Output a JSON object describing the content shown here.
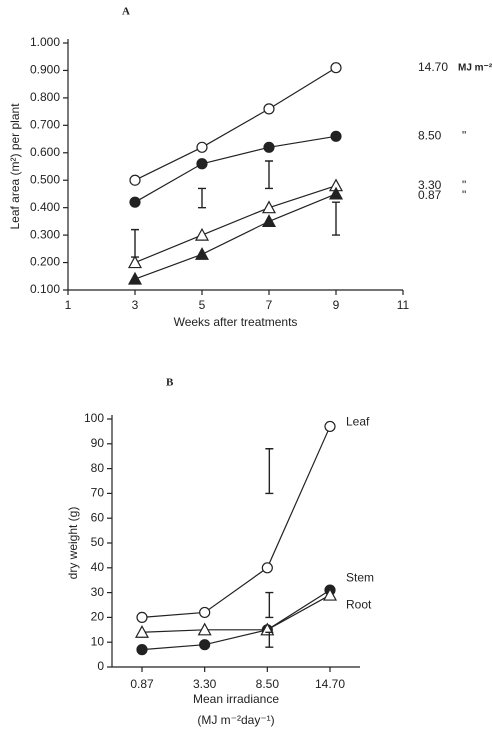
{
  "chart_data": [
    {
      "type": "line",
      "title": "A",
      "xlabel": "Weeks after treatments",
      "ylabel": "Leaf area (m²) per plant",
      "x": [
        3,
        5,
        7,
        9
      ],
      "xlim": [
        1,
        11
      ],
      "xticks": [
        1,
        3,
        5,
        7,
        9,
        11
      ],
      "ylim": [
        0.1,
        1.0
      ],
      "yticks": [
        {
          "value": 0.1,
          "label": "0.100"
        },
        {
          "value": 0.2,
          "label": "0.200"
        },
        {
          "value": 0.3,
          "label": "0.300"
        },
        {
          "value": 0.4,
          "label": "0.400"
        },
        {
          "value": 0.5,
          "label": "0.500"
        },
        {
          "value": 0.6,
          "label": "0.600"
        },
        {
          "value": 0.7,
          "label": "0.700"
        },
        {
          "value": 0.8,
          "label": "0.800"
        },
        {
          "value": 0.9,
          "label": "0.900"
        },
        {
          "value": 1.0,
          "label": "1.000"
        }
      ],
      "unit_label": "MJ m⁻²day⁻¹",
      "ditto": "\"",
      "series": [
        {
          "name": "14.70",
          "marker": "circle-open",
          "values": [
            0.5,
            0.62,
            0.76,
            0.91
          ]
        },
        {
          "name": "8.50",
          "marker": "circle-filled",
          "values": [
            0.42,
            0.56,
            0.62,
            0.66
          ]
        },
        {
          "name": "3.30",
          "marker": "triangle-open",
          "values": [
            0.2,
            0.3,
            0.4,
            0.48
          ]
        },
        {
          "name": "0.87",
          "marker": "triangle-filled",
          "values": [
            0.14,
            0.23,
            0.35,
            0.45
          ]
        }
      ],
      "error_bars": [
        {
          "x": 3,
          "low": 0.22,
          "high": 0.32
        },
        {
          "x": 5,
          "low": 0.4,
          "high": 0.47
        },
        {
          "x": 7,
          "low": 0.47,
          "high": 0.57
        },
        {
          "x": 9,
          "low": 0.3,
          "high": 0.42
        }
      ]
    },
    {
      "type": "line",
      "title": "B",
      "xlabel": "Mean irradiance",
      "unit_label": "(MJ m⁻²day⁻¹)",
      "ylabel": "dry weight (g)",
      "categories": [
        "0.87",
        "3.30",
        "8.50",
        "14.70"
      ],
      "ylim": [
        0,
        100
      ],
      "yticks": [
        0,
        10,
        20,
        30,
        40,
        50,
        60,
        70,
        80,
        90,
        100
      ],
      "series": [
        {
          "name": "Leaf",
          "marker": "circle-open",
          "values": [
            20,
            22,
            40,
            97
          ]
        },
        {
          "name": "Stem",
          "marker": "circle-filled",
          "values": [
            7,
            9,
            15,
            31
          ]
        },
        {
          "name": "Root",
          "marker": "triangle-open",
          "values": [
            14,
            15,
            15,
            29
          ]
        }
      ],
      "error_bars": [
        {
          "category": 2,
          "low": 70,
          "high": 88
        },
        {
          "category": 2,
          "low": 20,
          "high": 30
        },
        {
          "category": 2,
          "low": 8,
          "high": 14
        }
      ]
    }
  ]
}
